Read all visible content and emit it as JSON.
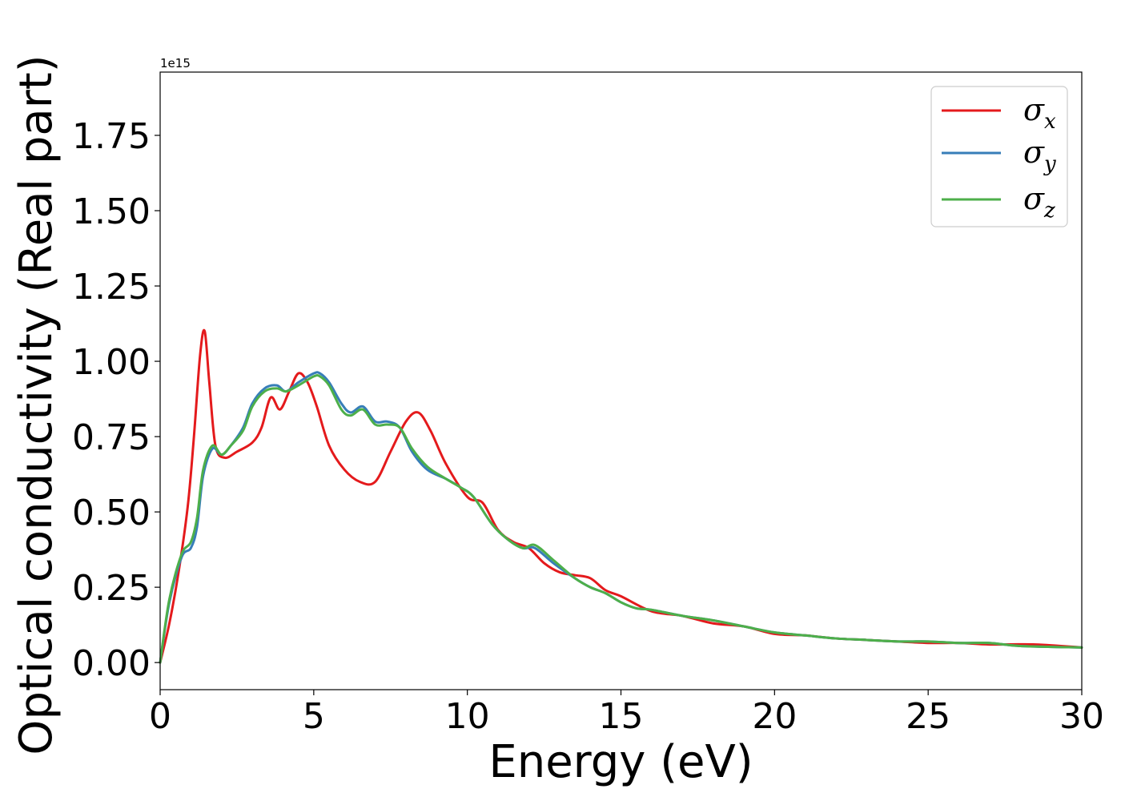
{
  "chart_data": {
    "type": "line",
    "title": "",
    "xlabel": "Energy (eV)",
    "ylabel": "Optical conductivity (Real part)",
    "y_offset_label": "1e15",
    "xlim": [
      0,
      30
    ],
    "ylim": [
      -0.09,
      1.96
    ],
    "x_ticks": [
      0,
      5,
      10,
      15,
      20,
      25,
      30
    ],
    "x_tick_labels": [
      "0",
      "5",
      "10",
      "15",
      "20",
      "25",
      "30"
    ],
    "y_ticks": [
      0.0,
      0.25,
      0.5,
      0.75,
      1.0,
      1.25,
      1.5,
      1.75
    ],
    "y_tick_labels": [
      "0.00",
      "0.25",
      "0.50",
      "0.75",
      "1.00",
      "1.25",
      "1.50",
      "1.75"
    ],
    "grid": false,
    "legend_position": "top-right",
    "series": [
      {
        "name": "σ",
        "subscript": "x",
        "color": "#e41a1c",
        "x": [
          0,
          0.3,
          0.6,
          0.9,
          1.1,
          1.3,
          1.45,
          1.6,
          1.8,
          2.1,
          2.5,
          3.0,
          3.3,
          3.6,
          3.9,
          4.2,
          4.5,
          4.8,
          5.1,
          5.5,
          6.0,
          6.5,
          7.0,
          7.5,
          8.0,
          8.4,
          8.8,
          9.3,
          10.0,
          10.5,
          11.0,
          11.5,
          12.0,
          12.5,
          13.0,
          13.5,
          14.0,
          14.5,
          15.0,
          16.0,
          17.0,
          18.0,
          19.0,
          20.0,
          21.0,
          22.0,
          23.0,
          24.0,
          25.0,
          26.0,
          27.0,
          28.5,
          30.0
        ],
        "y": [
          0,
          0.13,
          0.3,
          0.52,
          0.75,
          1.02,
          1.1,
          0.93,
          0.72,
          0.68,
          0.7,
          0.73,
          0.78,
          0.88,
          0.84,
          0.9,
          0.96,
          0.93,
          0.85,
          0.72,
          0.64,
          0.6,
          0.6,
          0.7,
          0.8,
          0.83,
          0.77,
          0.66,
          0.55,
          0.53,
          0.44,
          0.4,
          0.38,
          0.33,
          0.3,
          0.29,
          0.28,
          0.24,
          0.22,
          0.17,
          0.155,
          0.13,
          0.12,
          0.095,
          0.09,
          0.08,
          0.075,
          0.07,
          0.065,
          0.065,
          0.06,
          0.06,
          0.05
        ]
      },
      {
        "name": "σ",
        "subscript": "y",
        "color": "#377eb8",
        "x": [
          0,
          0.3,
          0.7,
          1.0,
          1.2,
          1.4,
          1.7,
          2.0,
          2.3,
          2.7,
          3.0,
          3.4,
          3.8,
          4.1,
          4.5,
          5.0,
          5.2,
          5.5,
          5.9,
          6.2,
          6.6,
          7.0,
          7.4,
          7.8,
          8.2,
          8.7,
          9.3,
          9.8,
          10.2,
          10.8,
          11.3,
          11.8,
          12.2,
          12.8,
          13.5,
          14.0,
          14.5,
          15.0,
          15.5,
          16.0,
          17.0,
          18.0,
          19.0,
          20.0,
          21.0,
          22.0,
          23.0,
          24.0,
          25.0,
          26.0,
          27.0,
          28.0,
          30.0
        ],
        "y": [
          0,
          0.2,
          0.35,
          0.38,
          0.45,
          0.62,
          0.71,
          0.69,
          0.72,
          0.78,
          0.86,
          0.91,
          0.92,
          0.9,
          0.93,
          0.96,
          0.96,
          0.93,
          0.86,
          0.83,
          0.85,
          0.8,
          0.8,
          0.78,
          0.7,
          0.64,
          0.61,
          0.58,
          0.55,
          0.46,
          0.41,
          0.38,
          0.38,
          0.33,
          0.28,
          0.25,
          0.23,
          0.2,
          0.18,
          0.175,
          0.155,
          0.14,
          0.12,
          0.1,
          0.09,
          0.08,
          0.075,
          0.07,
          0.07,
          0.065,
          0.065,
          0.055,
          0.05
        ]
      },
      {
        "name": "σ",
        "subscript": "z",
        "color": "#4daf4a",
        "x": [
          0,
          0.3,
          0.7,
          1.0,
          1.2,
          1.4,
          1.7,
          2.0,
          2.3,
          2.7,
          3.0,
          3.4,
          3.8,
          4.1,
          4.5,
          5.0,
          5.2,
          5.5,
          5.9,
          6.2,
          6.6,
          7.0,
          7.4,
          7.8,
          8.2,
          8.7,
          9.3,
          9.8,
          10.2,
          10.8,
          11.3,
          11.8,
          12.2,
          12.8,
          13.5,
          14.0,
          14.5,
          15.0,
          15.5,
          16.0,
          17.0,
          18.0,
          19.0,
          20.0,
          21.0,
          22.0,
          23.0,
          24.0,
          25.0,
          26.0,
          27.0,
          28.0,
          30.0
        ],
        "y": [
          0,
          0.21,
          0.36,
          0.4,
          0.48,
          0.64,
          0.72,
          0.69,
          0.72,
          0.77,
          0.85,
          0.9,
          0.91,
          0.9,
          0.92,
          0.95,
          0.95,
          0.92,
          0.84,
          0.82,
          0.84,
          0.79,
          0.79,
          0.78,
          0.71,
          0.65,
          0.61,
          0.58,
          0.55,
          0.46,
          0.41,
          0.38,
          0.39,
          0.34,
          0.28,
          0.25,
          0.23,
          0.2,
          0.18,
          0.175,
          0.155,
          0.14,
          0.12,
          0.1,
          0.09,
          0.08,
          0.075,
          0.07,
          0.07,
          0.065,
          0.065,
          0.055,
          0.05
        ]
      }
    ]
  }
}
